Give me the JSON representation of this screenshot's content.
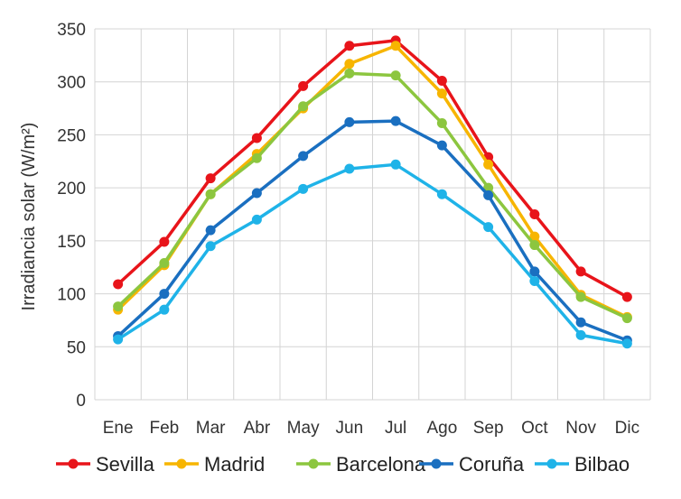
{
  "chart_data": {
    "type": "line",
    "title": "",
    "xlabel": "",
    "ylabel": "Irradiancia solar (W/m²)",
    "ylim": [
      0,
      350
    ],
    "yticks": [
      0,
      50,
      100,
      150,
      200,
      250,
      300,
      350
    ],
    "grid": true,
    "legend_position": "bottom",
    "categories": [
      "Ene",
      "Feb",
      "Mar",
      "Abr",
      "May",
      "Jun",
      "Jul",
      "Ago",
      "Sep",
      "Oct",
      "Nov",
      "Dic"
    ],
    "series": [
      {
        "name": "Sevilla",
        "color": "#e8141a",
        "values": [
          109,
          149,
          209,
          247,
          296,
          334,
          339,
          301,
          229,
          175,
          121,
          97
        ]
      },
      {
        "name": "Madrid",
        "color": "#f7b500",
        "values": [
          85,
          127,
          194,
          232,
          275,
          317,
          334,
          289,
          222,
          154,
          99,
          78
        ]
      },
      {
        "name": "Barcelona",
        "color": "#8cc63f",
        "values": [
          88,
          129,
          194,
          228,
          277,
          308,
          306,
          261,
          200,
          146,
          97,
          77
        ]
      },
      {
        "name": "Coruña",
        "color": "#1a6fc0",
        "values": [
          60,
          100,
          160,
          195,
          230,
          262,
          263,
          240,
          193,
          121,
          73,
          56
        ]
      },
      {
        "name": "Bilbao",
        "color": "#1fb3e8",
        "values": [
          57,
          85,
          145,
          170,
          199,
          218,
          222,
          194,
          163,
          112,
          61,
          53
        ]
      }
    ]
  }
}
